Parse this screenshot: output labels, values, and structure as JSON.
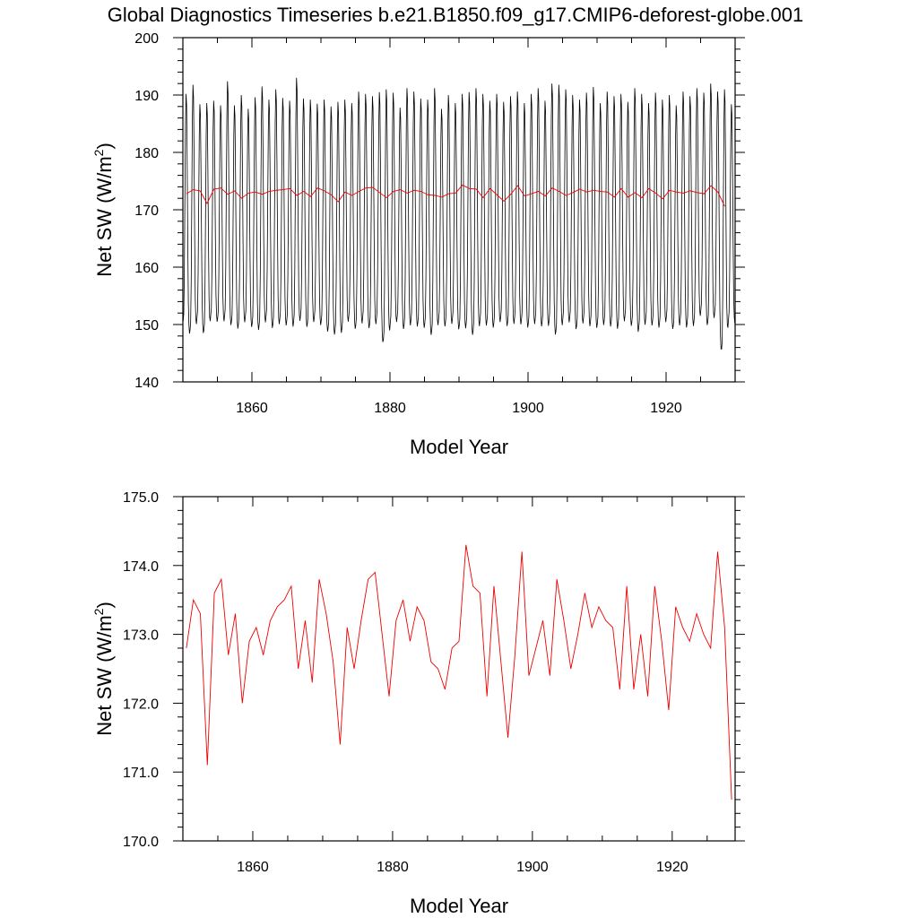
{
  "title": "Global Diagnostics Timeseries b.e21.B1850.f09_g17.CMIP6-deforest-globe.001",
  "chart_data": [
    {
      "type": "line",
      "xlabel": "Model Year",
      "ylabel": "Net SW (W/m",
      "ylabel_sup": "2",
      "ylabel_tail": ")",
      "xlim": [
        1850,
        1930
      ],
      "ylim": [
        140,
        200
      ],
      "xticks": [
        1860,
        1880,
        1900,
        1920
      ],
      "yticks": [
        140,
        150,
        160,
        170,
        180,
        190,
        200
      ],
      "ytick_labels": [
        "140",
        "150",
        "160",
        "170",
        "180",
        "190",
        "200"
      ],
      "monthly_series": {
        "color": "#000000",
        "start_year": 1850,
        "end_year": 1929,
        "annual_peak": [
          190.2,
          191.8,
          188.4,
          188.6,
          189.0,
          188.2,
          192.4,
          188.2,
          190.0,
          187.6,
          189.6,
          191.5,
          189.2,
          191.0,
          189.5,
          189.0,
          193.0,
          189.4,
          189.2,
          188.5,
          189.2,
          188.0,
          188.8,
          189.2,
          188.6,
          190.6,
          190.2,
          189.8,
          190.5,
          191.0,
          190.4,
          187.8,
          191.2,
          190.6,
          189.4,
          189.2,
          191.2,
          187.6,
          190.0,
          188.6,
          190.2,
          190.5,
          191.2,
          190.2,
          189.0,
          190.2,
          188.8,
          189.8,
          190.6,
          188.6,
          190.2,
          191.2,
          189.0,
          192.0,
          191.8,
          191.0,
          190.0,
          189.2,
          190.4,
          191.4,
          188.6,
          190.6,
          189.8,
          190.2,
          188.8,
          191.2,
          190.2,
          188.6,
          190.4,
          189.2,
          190.0,
          188.2,
          190.6,
          189.8,
          191.2,
          190.4,
          192.0,
          190.6,
          191.0,
          188.4
        ],
        "annual_trough": [
          149.8,
          148.2,
          150.4,
          148.2,
          151.0,
          150.4,
          150.6,
          149.8,
          149.2,
          150.6,
          149.4,
          149.0,
          150.6,
          149.2,
          150.2,
          149.8,
          149.6,
          150.8,
          149.4,
          150.6,
          149.8,
          148.6,
          148.2,
          148.6,
          150.8,
          149.0,
          150.4,
          149.2,
          150.2,
          146.4,
          149.4,
          150.6,
          149.0,
          150.0,
          149.6,
          149.4,
          148.0,
          150.2,
          149.6,
          150.2,
          149.0,
          149.4,
          148.0,
          150.0,
          149.8,
          149.4,
          150.6,
          149.6,
          150.2,
          150.0,
          149.4,
          150.2,
          149.6,
          149.8,
          148.0,
          150.2,
          150.4,
          149.0,
          150.4,
          149.6,
          149.4,
          150.0,
          149.6,
          149.2,
          150.8,
          149.6,
          148.6,
          150.2,
          149.8,
          149.4,
          150.6,
          149.0,
          150.0,
          149.4,
          149.8,
          151.8,
          149.6,
          151.4,
          144.8,
          150.2
        ]
      },
      "annual_series": {
        "color": "#ee0000",
        "x_start": 1850.5,
        "values": [
          172.8,
          173.5,
          173.3,
          171.1,
          173.6,
          173.8,
          172.7,
          173.3,
          172.0,
          172.9,
          173.1,
          172.7,
          173.2,
          173.4,
          173.5,
          173.7,
          172.5,
          173.2,
          172.3,
          173.8,
          173.3,
          172.6,
          171.4,
          173.1,
          172.5,
          173.2,
          173.8,
          173.9,
          173.0,
          172.1,
          173.2,
          173.5,
          172.9,
          173.4,
          173.2,
          172.6,
          172.5,
          172.2,
          172.8,
          172.9,
          174.3,
          173.7,
          173.6,
          172.1,
          173.7,
          172.6,
          171.5,
          172.7,
          174.2,
          172.4,
          172.8,
          173.2,
          172.4,
          173.8,
          173.2,
          172.5,
          173.0,
          173.6,
          173.1,
          173.4,
          173.2,
          173.1,
          172.2,
          173.7,
          172.2,
          173.0,
          172.1,
          173.7,
          172.9,
          171.9,
          173.4,
          173.1,
          172.9,
          173.3,
          173.0,
          172.8,
          174.2,
          173.1,
          170.6
        ]
      }
    },
    {
      "type": "line",
      "xlabel": "Model Year",
      "ylabel": "Net SW (W/m",
      "ylabel_sup": "2",
      "ylabel_tail": ")",
      "xlim": [
        1850,
        1929
      ],
      "ylim": [
        170.0,
        175.0
      ],
      "xticks": [
        1860,
        1880,
        1900,
        1920
      ],
      "yticks": [
        170.0,
        171.0,
        172.0,
        173.0,
        174.0,
        175.0
      ],
      "ytick_labels": [
        "170.0",
        "171.0",
        "172.0",
        "173.0",
        "174.0",
        "175.0"
      ],
      "annual_series": {
        "color": "#ee0000",
        "x_start": 1850.5,
        "values": [
          172.8,
          173.5,
          173.3,
          171.1,
          173.6,
          173.8,
          172.7,
          173.3,
          172.0,
          172.9,
          173.1,
          172.7,
          173.2,
          173.4,
          173.5,
          173.7,
          172.5,
          173.2,
          172.3,
          173.8,
          173.3,
          172.6,
          171.4,
          173.1,
          172.5,
          173.2,
          173.8,
          173.9,
          173.0,
          172.1,
          173.2,
          173.5,
          172.9,
          173.4,
          173.2,
          172.6,
          172.5,
          172.2,
          172.8,
          172.9,
          174.3,
          173.7,
          173.6,
          172.1,
          173.7,
          172.6,
          171.5,
          172.7,
          174.2,
          172.4,
          172.8,
          173.2,
          172.4,
          173.8,
          173.2,
          172.5,
          173.0,
          173.6,
          173.1,
          173.4,
          173.2,
          173.1,
          172.2,
          173.7,
          172.2,
          173.0,
          172.1,
          173.7,
          172.9,
          171.9,
          173.4,
          173.1,
          172.9,
          173.3,
          173.0,
          172.8,
          174.2,
          173.1,
          170.6
        ]
      }
    }
  ]
}
